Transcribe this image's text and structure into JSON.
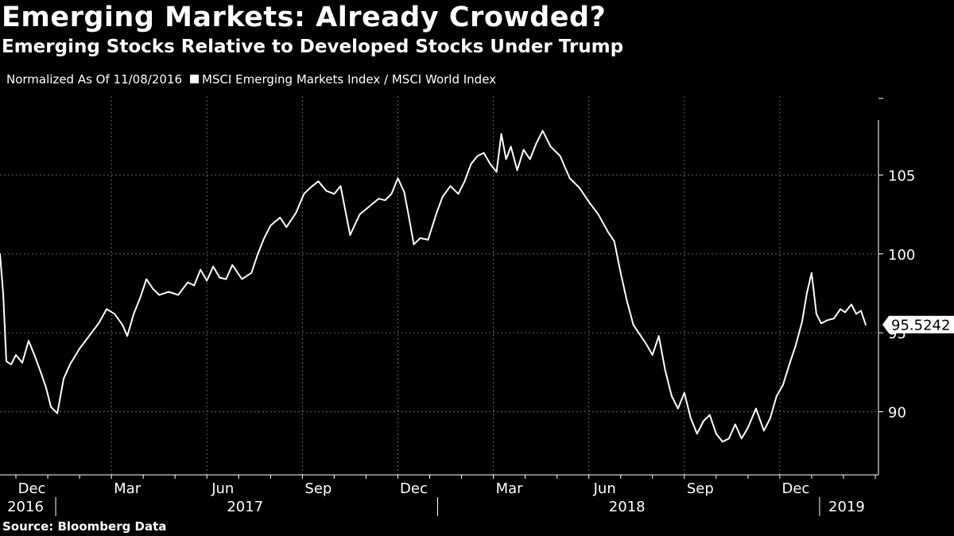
{
  "header": {
    "title": "Emerging Markets: Already Crowded?",
    "subtitle": "Emerging Stocks Relative to Developed Stocks Under Trump",
    "normalized_label": "Normalized As Of 11/08/2016",
    "series_label": "MSCI Emerging Markets Index / MSCI World Index"
  },
  "footer": {
    "source": "Source: Bloomberg Data"
  },
  "colors": {
    "background": "#000000",
    "line": "#ffffff",
    "grid": "#666666"
  },
  "chart_data": {
    "type": "line",
    "title": "Emerging Markets: Already Crowded?",
    "subtitle": "Emerging Stocks Relative to Developed Stocks Under Trump",
    "ylim": [
      86,
      110
    ],
    "yticks": [
      90,
      95,
      100,
      105
    ],
    "ytick_labels": [
      "90",
      "95",
      "100",
      "105"
    ],
    "last_value_label": "95.5242",
    "last_value": 95.5242,
    "xlim": [
      0,
      27.6
    ],
    "month_ticks": [
      {
        "x": 1,
        "label": "Dec"
      },
      {
        "x": 4,
        "label": "Mar"
      },
      {
        "x": 7,
        "label": "Jun"
      },
      {
        "x": 10,
        "label": "Sep"
      },
      {
        "x": 13,
        "label": "Dec"
      },
      {
        "x": 16,
        "label": "Mar"
      },
      {
        "x": 19,
        "label": "Jun"
      },
      {
        "x": 22,
        "label": "Sep"
      },
      {
        "x": 25,
        "label": "Dec"
      }
    ],
    "year_labels": [
      {
        "x": 0.8,
        "label": "2016"
      },
      {
        "x": 7.7,
        "label": "2017"
      },
      {
        "x": 19.7,
        "label": "2018"
      },
      {
        "x": 26.6,
        "label": "2019"
      }
    ],
    "year_separators": [
      1.75,
      13.75,
      25.75
    ],
    "xlabel": "",
    "ylabel": "",
    "series": [
      {
        "name": "MSCI Emerging Markets Index / MSCI World Index",
        "x": [
          0,
          0.1,
          0.2,
          0.35,
          0.5,
          0.7,
          0.9,
          1.1,
          1.3,
          1.45,
          1.6,
          1.8,
          2.0,
          2.2,
          2.5,
          2.8,
          3.1,
          3.35,
          3.6,
          3.85,
          4.0,
          4.2,
          4.4,
          4.6,
          4.8,
          5.0,
          5.3,
          5.6,
          5.9,
          6.1,
          6.3,
          6.5,
          6.7,
          6.9,
          7.1,
          7.3,
          7.6,
          7.9,
          8.1,
          8.3,
          8.5,
          8.8,
          9.0,
          9.3,
          9.55,
          9.75,
          10.0,
          10.25,
          10.5,
          10.7,
          11.0,
          11.3,
          11.6,
          11.9,
          12.1,
          12.3,
          12.5,
          12.7,
          12.85,
          13.0,
          13.2,
          13.45,
          13.7,
          13.9,
          14.15,
          14.4,
          14.6,
          14.8,
          15.0,
          15.2,
          15.4,
          15.6,
          15.75,
          15.9,
          16.05,
          16.25,
          16.45,
          16.65,
          16.85,
          17.05,
          17.3,
          17.6,
          17.9,
          18.2,
          18.5,
          18.8,
          19.1,
          19.3,
          19.5,
          19.7,
          19.9,
          20.1,
          20.3,
          20.5,
          20.7,
          20.9,
          21.1,
          21.3,
          21.5,
          21.7,
          21.9,
          22.1,
          22.3,
          22.5,
          22.7,
          22.9,
          23.1,
          23.3,
          23.5,
          23.75,
          24.0,
          24.2,
          24.4,
          24.6,
          24.8,
          25.0,
          25.2,
          25.35,
          25.5,
          25.65,
          25.8,
          26.0,
          26.2,
          26.4,
          26.55,
          26.75,
          26.9,
          27.05,
          27.2
        ],
        "values": [
          100.0,
          97.5,
          93.2,
          93.0,
          93.6,
          93.1,
          94.5,
          93.5,
          92.4,
          91.5,
          90.3,
          89.9,
          92.1,
          93.0,
          94.0,
          94.8,
          95.6,
          96.5,
          96.2,
          95.5,
          94.8,
          96.2,
          97.2,
          98.4,
          97.8,
          97.4,
          97.6,
          97.4,
          98.2,
          98.0,
          99.0,
          98.3,
          99.2,
          98.5,
          98.4,
          99.3,
          98.4,
          98.8,
          100.0,
          101.0,
          101.8,
          102.3,
          101.7,
          102.6,
          103.8,
          104.2,
          104.6,
          104.0,
          103.8,
          104.3,
          101.2,
          102.5,
          103.0,
          103.5,
          103.4,
          103.8,
          104.8,
          103.9,
          102.3,
          100.6,
          101.0,
          100.9,
          102.5,
          103.6,
          104.3,
          103.8,
          104.6,
          105.7,
          106.2,
          106.4,
          105.7,
          105.2,
          107.6,
          106.0,
          106.8,
          105.3,
          106.6,
          106.0,
          107.0,
          107.8,
          106.8,
          106.2,
          104.8,
          104.2,
          103.3,
          102.5,
          101.4,
          100.8,
          98.8,
          97.0,
          95.5,
          94.9,
          94.3,
          93.6,
          94.8,
          92.6,
          91.0,
          90.2,
          91.2,
          89.6,
          88.6,
          89.4,
          89.8,
          88.6,
          88.1,
          88.3,
          89.2,
          88.3,
          89.0,
          90.2,
          88.8,
          89.6,
          91.0,
          91.7,
          93.0,
          94.2,
          95.7,
          97.5,
          98.8,
          96.2,
          95.6,
          95.8,
          95.9,
          96.5,
          96.3,
          96.8,
          96.2,
          96.4,
          95.5
        ]
      }
    ]
  }
}
